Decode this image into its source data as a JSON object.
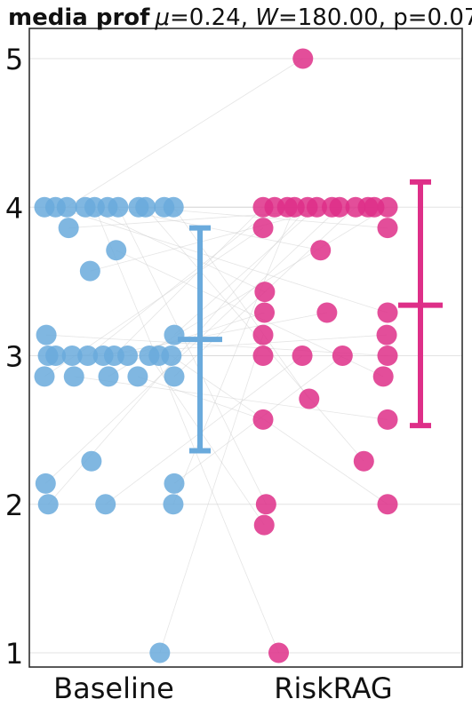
{
  "title": {
    "bold": "media prof",
    "mu_symbol": "μ",
    "mu_value": "=0.24, ",
    "w_symbol": "W",
    "w_value": "=180.00, p=0.071"
  },
  "chart_data": {
    "type": "scatter",
    "ylim": [
      0.9,
      5.2
    ],
    "yticks": [
      "1",
      "2",
      "3",
      "4",
      "5"
    ],
    "categories": [
      "Baseline",
      "RiskRAG"
    ],
    "grid": true,
    "colors": {
      "Baseline": "#6aaadc",
      "RiskRAG": "#de2f88"
    },
    "series": [
      {
        "name": "Baseline",
        "mean": 3.11,
        "ci": [
          2.36,
          3.86
        ],
        "values": [
          4,
          4,
          4,
          4,
          4,
          4,
          4,
          4,
          4,
          4,
          4,
          3.86,
          3.71,
          3.57,
          3.14,
          3.14,
          3,
          3,
          3,
          3,
          3,
          3,
          3,
          3,
          3,
          3,
          2.86,
          2.86,
          2.86,
          2.86,
          2.86,
          2.29,
          2.14,
          2.14,
          2,
          2,
          2,
          1
        ]
      },
      {
        "name": "RiskRAG",
        "mean": 3.34,
        "ci": [
          2.53,
          4.17
        ],
        "values": [
          5,
          4,
          4,
          4,
          4,
          4,
          4,
          4,
          4,
          4,
          4,
          4,
          4,
          3.86,
          3.86,
          3.71,
          3.43,
          3.29,
          3.29,
          3.29,
          3.14,
          3.14,
          3,
          3,
          3,
          3,
          2.86,
          2.71,
          2.57,
          2.57,
          2.29,
          2,
          2,
          1.86,
          1
        ]
      }
    ]
  }
}
